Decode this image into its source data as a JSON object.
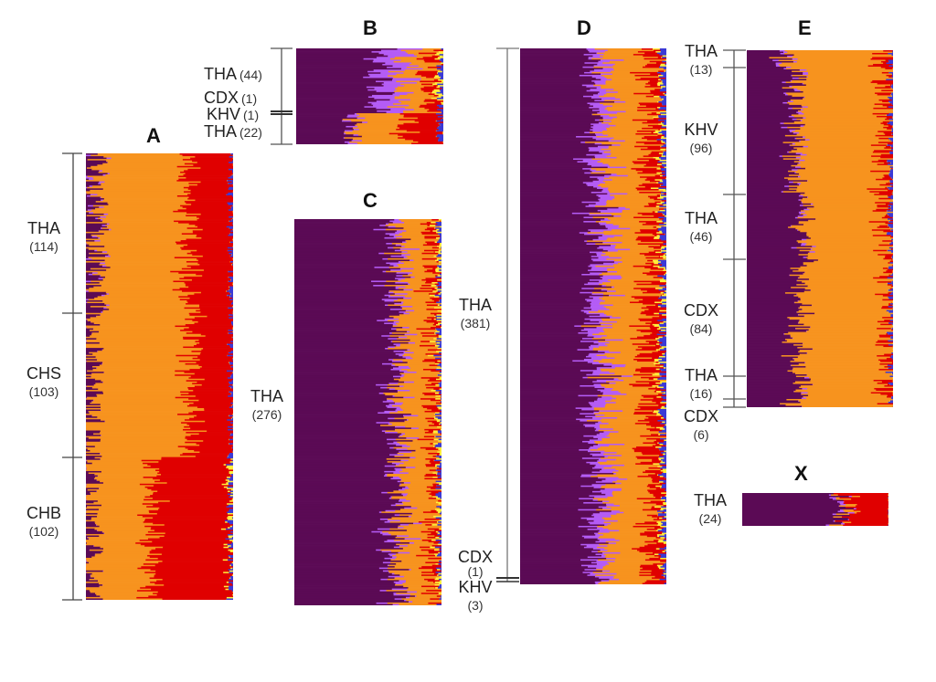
{
  "chart_data": [
    {
      "type": "bar",
      "subtype": "stacked-horizontal-admixture",
      "title": "A",
      "cluster_colors": [
        "#5b0a55",
        "#b45cf5",
        "#f7931e",
        "#e00000",
        "#ffef3a",
        "#3a3ad6"
      ],
      "cluster_names": [
        "K1 dark purple",
        "K2 light purple",
        "K3 orange",
        "K4 red",
        "K5 yellow",
        "K6 blue"
      ],
      "groups": [
        {
          "name": "THA",
          "n": 114,
          "mean_proportions": [
            0.06,
            0.005,
            0.63,
            0.3,
            0.0,
            0.005
          ]
        },
        {
          "name": "CHS",
          "n": 103,
          "mean_proportions": [
            0.03,
            0.0,
            0.68,
            0.285,
            0.0,
            0.005
          ]
        },
        {
          "name": "CHB",
          "n": 102,
          "mean_proportions": [
            0.02,
            0.0,
            0.42,
            0.545,
            0.005,
            0.01
          ]
        }
      ]
    },
    {
      "type": "bar",
      "subtype": "stacked-horizontal-admixture",
      "title": "B",
      "groups": [
        {
          "name": "THA",
          "n": 44,
          "mean_proportions": [
            0.58,
            0.18,
            0.17,
            0.05,
            0.01,
            0.01
          ]
        },
        {
          "name": "CDX",
          "n": 1,
          "mean_proportions": [
            0.6,
            0.2,
            0.15,
            0.04,
            0.0,
            0.01
          ]
        },
        {
          "name": "KHV",
          "n": 1,
          "mean_proportions": [
            0.6,
            0.15,
            0.2,
            0.04,
            0.0,
            0.01
          ]
        },
        {
          "name": "THA",
          "n": 22,
          "mean_proportions": [
            0.38,
            0.03,
            0.35,
            0.23,
            0.0,
            0.01
          ]
        }
      ]
    },
    {
      "type": "bar",
      "subtype": "stacked-horizontal-admixture",
      "title": "C",
      "groups": [
        {
          "name": "THA",
          "n": 276,
          "mean_proportions": [
            0.7,
            0.04,
            0.23,
            0.02,
            0.005,
            0.005
          ]
        }
      ]
    },
    {
      "type": "bar",
      "subtype": "stacked-horizontal-admixture",
      "title": "D",
      "groups": [
        {
          "name": "THA",
          "n": 381,
          "mean_proportions": [
            0.5,
            0.1,
            0.28,
            0.09,
            0.01,
            0.02
          ]
        },
        {
          "name": "CDX",
          "n": 1,
          "mean_proportions": [
            0.55,
            0.08,
            0.28,
            0.07,
            0.0,
            0.02
          ]
        },
        {
          "name": "KHV",
          "n": 3,
          "mean_proportions": [
            0.55,
            0.08,
            0.28,
            0.07,
            0.0,
            0.02
          ]
        }
      ]
    },
    {
      "type": "bar",
      "subtype": "stacked-horizontal-admixture",
      "title": "E",
      "groups": [
        {
          "name": "THA",
          "n": 13,
          "mean_proportions": [
            0.25,
            0.005,
            0.67,
            0.07,
            0.0,
            0.005
          ]
        },
        {
          "name": "KHV",
          "n": 96,
          "mean_proportions": [
            0.33,
            0.005,
            0.6,
            0.06,
            0.0,
            0.005
          ]
        },
        {
          "name": "THA",
          "n": 46,
          "mean_proportions": [
            0.4,
            0.005,
            0.57,
            0.02,
            0.0,
            0.005
          ]
        },
        {
          "name": "CDX",
          "n": 84,
          "mean_proportions": [
            0.36,
            0.0,
            0.62,
            0.015,
            0.0,
            0.005
          ]
        },
        {
          "name": "THA",
          "n": 16,
          "mean_proportions": [
            0.38,
            0.01,
            0.55,
            0.055,
            0.0,
            0.005
          ]
        },
        {
          "name": "CDX",
          "n": 6,
          "mean_proportions": [
            0.33,
            0.0,
            0.65,
            0.015,
            0.0,
            0.005
          ]
        }
      ]
    },
    {
      "type": "bar",
      "subtype": "stacked-horizontal-admixture",
      "title": "X",
      "groups": [
        {
          "name": "THA",
          "n": 24,
          "mean_proportions": [
            0.71,
            0.01,
            0.01,
            0.27,
            0.0,
            0.0
          ]
        }
      ]
    }
  ],
  "labels": {
    "A": {
      "letter": "A",
      "groups": [
        {
          "name": "THA",
          "n": "(114)"
        },
        {
          "name": "CHS",
          "n": "(103)"
        },
        {
          "name": "CHB",
          "n": "(102)"
        }
      ]
    },
    "B": {
      "letter": "B",
      "groups": [
        {
          "name": "THA",
          "n": "(44)"
        },
        {
          "name": "CDX",
          "n": "(1)"
        },
        {
          "name": "KHV",
          "n": "(1)"
        },
        {
          "name": "THA",
          "n": "(22)"
        }
      ]
    },
    "C": {
      "letter": "C",
      "groups": [
        {
          "name": "THA",
          "n": "(276)"
        }
      ]
    },
    "D": {
      "letter": "D",
      "groups": [
        {
          "name": "THA",
          "n": "(381)"
        },
        {
          "name": "CDX",
          "n": "(1)"
        },
        {
          "name": "KHV",
          "n": "(3)"
        }
      ]
    },
    "E": {
      "letter": "E",
      "groups": [
        {
          "name": "THA",
          "n": "(13)"
        },
        {
          "name": "KHV",
          "n": "(96)"
        },
        {
          "name": "THA",
          "n": "(46)"
        },
        {
          "name": "CDX",
          "n": "(84)"
        },
        {
          "name": "THA",
          "n": "(16)"
        },
        {
          "name": "CDX",
          "n": "(6)"
        }
      ]
    },
    "X": {
      "letter": "X",
      "groups": [
        {
          "name": "THA",
          "n": "(24)"
        }
      ]
    }
  }
}
